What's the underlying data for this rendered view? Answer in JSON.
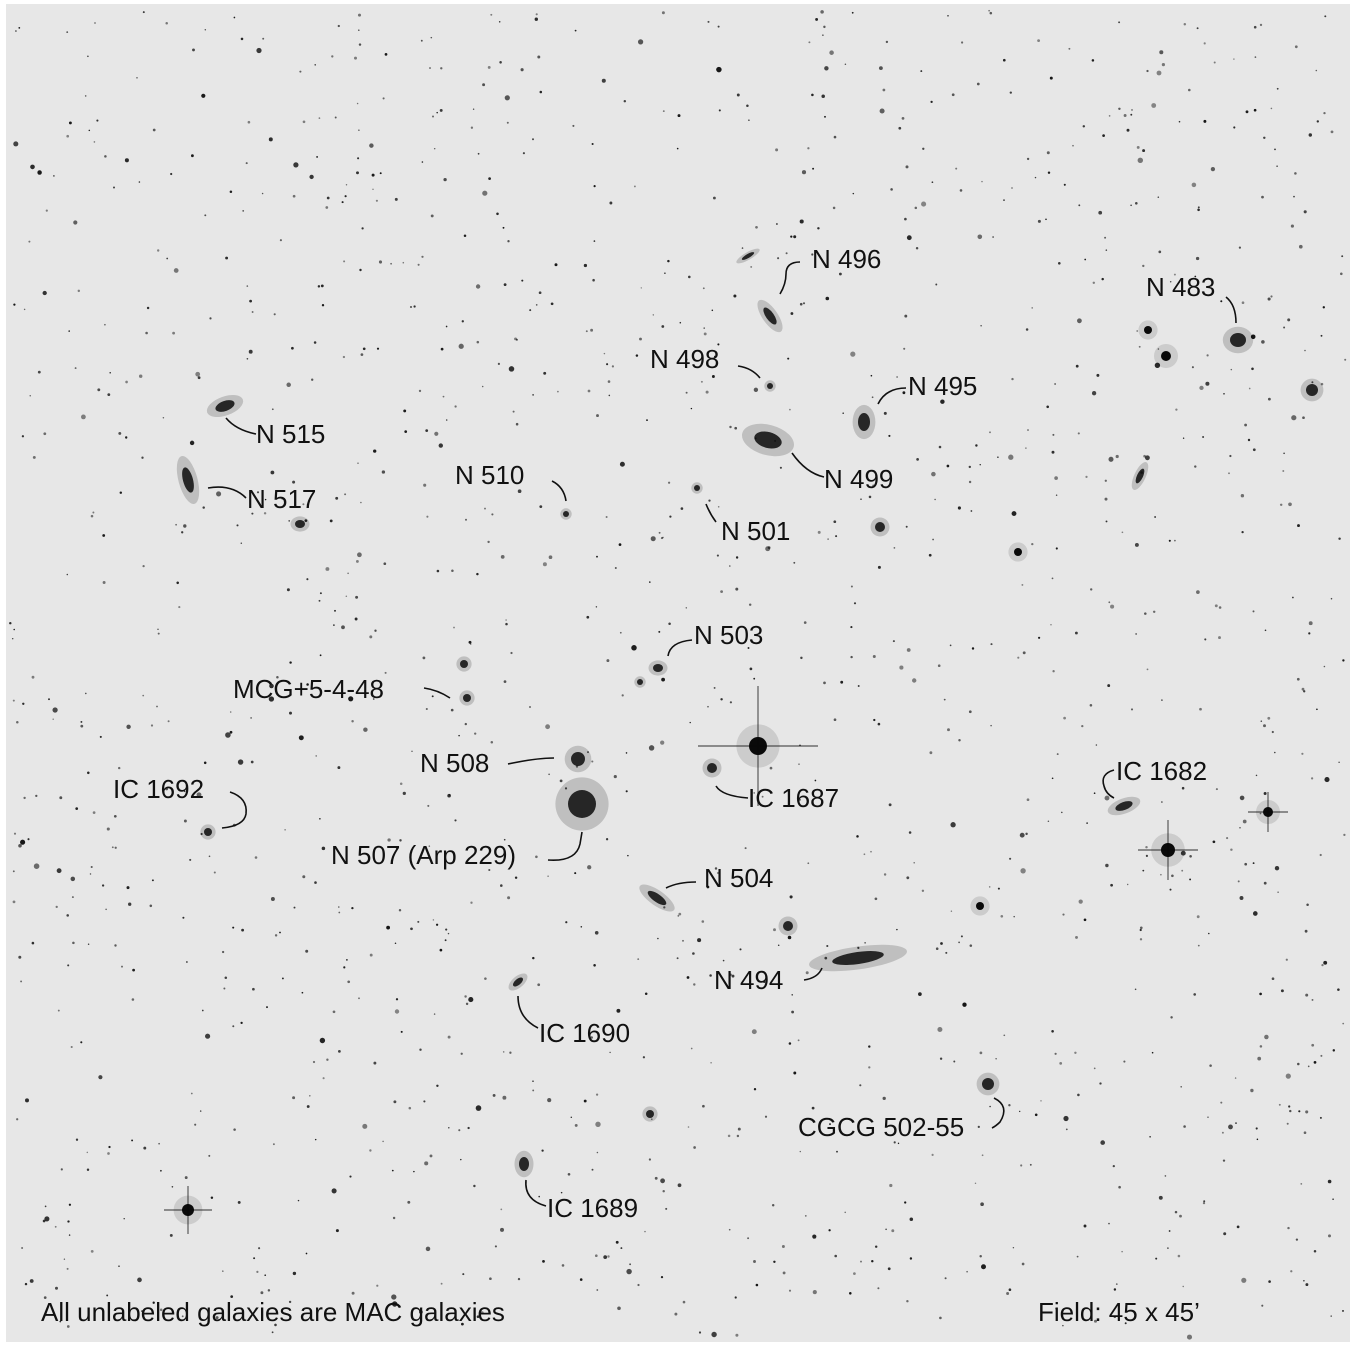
{
  "colors": {
    "sky": "#e7e7e7",
    "ink": "#111111",
    "star": "#0a0a0a"
  },
  "labels": {
    "n496": "N 496",
    "n483": "N 483",
    "n498": "N 498",
    "n495": "N 495",
    "n515": "N 515",
    "n510": "N 510",
    "n499": "N 499",
    "n517": "N 517",
    "n501": "N 501",
    "n503": "N 503",
    "mcg": "MCG+5-4-48",
    "n508": "N 508",
    "ic1682": "IC 1682",
    "ic1692": "IC 1692",
    "ic1687": "IC 1687",
    "n507": "N 507 (Arp 229)",
    "n504": "N 504",
    "n494": "N 494",
    "ic1690": "IC 1690",
    "cgcg": "CGCG 502-55",
    "ic1689": "IC 1689"
  },
  "footer": {
    "note": "All unlabeled galaxies are MAC galaxies",
    "field": "Field:  45 x 45’"
  }
}
